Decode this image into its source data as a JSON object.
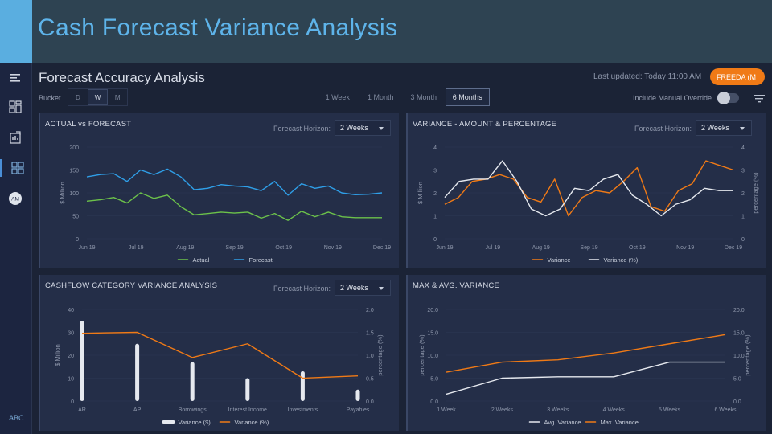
{
  "slide": {
    "title": "Cash Forecast Variance Analysis"
  },
  "app": {
    "title": "Forecast Accuracy Analysis",
    "last_updated": "Last updated: Today 11:00 AM",
    "user_label": "FREEDA (M",
    "footer_label": "ABC"
  },
  "sidebar": {
    "icons": [
      "menu-icon",
      "dashboard-icon",
      "report-icon",
      "analysis-icon",
      "avatar"
    ],
    "avatar_text": "AM"
  },
  "controls": {
    "bucket_label": "Bucket",
    "bucket_options": [
      "D",
      "W",
      "M"
    ],
    "bucket_selected": "W",
    "periods": [
      "1 Week",
      "1 Month",
      "3 Month",
      "6 Months"
    ],
    "period_selected": "6 Months",
    "manual_override_label": "Include Manual Override",
    "manual_override_on": false
  },
  "colors": {
    "orange": "#f07a16",
    "blue": "#2f9fe8",
    "green": "#6cc24a",
    "white_line": "#e6e9ef",
    "accent": "#5eb4ea"
  },
  "chart_data": [
    {
      "type": "line",
      "title": "ACTUAL vs FORECAST",
      "horizon_label": "Forecast Horizon:",
      "horizon_value": "2 Weeks",
      "ylabel": "$ Million",
      "ylim": [
        0,
        200
      ],
      "yticks": [
        "0",
        "50",
        "100",
        "150",
        "200"
      ],
      "x_tick_labels": [
        "Jun 19",
        "Jul 19",
        "Aug 19",
        "Sep 19",
        "Oct 19",
        "Nov 19",
        "Dec 19"
      ],
      "series": [
        {
          "name": "Actual",
          "color": "#6cc24a",
          "values": [
            82,
            85,
            90,
            78,
            100,
            88,
            95,
            70,
            52,
            55,
            58,
            56,
            58,
            45,
            55,
            40,
            60,
            48,
            58,
            48,
            46,
            46,
            46
          ]
        },
        {
          "name": "Forecast",
          "color": "#2f9fe8",
          "values": [
            135,
            140,
            142,
            125,
            150,
            140,
            152,
            135,
            107,
            110,
            118,
            115,
            113,
            105,
            125,
            95,
            120,
            110,
            115,
            100,
            96,
            97,
            100
          ]
        }
      ],
      "legend_position": "bottom"
    },
    {
      "type": "line",
      "title": "VARIANCE - AMOUNT & PERCENTAGE",
      "horizon_label": "Forecast Horizon:",
      "horizon_value": "2 Weeks",
      "ylabel": "$ M llion",
      "ylabel_right": "percentage (%)",
      "ylim": [
        0,
        4
      ],
      "yticks": [
        "0",
        "1",
        "2",
        "3",
        "4"
      ],
      "ylim_right": [
        0,
        4
      ],
      "yticks_right": [
        "0",
        "1",
        "2",
        "3",
        "4"
      ],
      "x_tick_labels": [
        "Jun 19",
        "Jul 19",
        "Aug 19",
        "Sep 19",
        "Oct 19",
        "Nov 19",
        "Dec 19"
      ],
      "series": [
        {
          "name": "Variance",
          "color": "#f07a16",
          "values": [
            1.5,
            1.8,
            2.5,
            2.6,
            2.8,
            2.6,
            1.8,
            1.6,
            2.6,
            1.0,
            1.8,
            2.1,
            2.0,
            2.5,
            3.1,
            1.4,
            1.2,
            2.1,
            2.4,
            3.4,
            3.2,
            3.0
          ]
        },
        {
          "name": "Variance (%)",
          "color": "#e6e9ef",
          "values": [
            1.8,
            2.5,
            2.6,
            2.6,
            3.4,
            2.5,
            1.3,
            1.0,
            1.3,
            2.2,
            2.1,
            2.6,
            2.8,
            1.9,
            1.5,
            1.0,
            1.5,
            1.7,
            2.2,
            2.1,
            2.1
          ]
        }
      ],
      "legend_position": "bottom"
    },
    {
      "type": "bar",
      "title": "CASHFLOW CATEGORY VARIANCE ANALYSIS",
      "horizon_label": "Forecast Horizon:",
      "horizon_value": "2 Weeks",
      "ylabel": "$ Million",
      "ylabel_right": "percentage (%)",
      "ylim": [
        0,
        40
      ],
      "yticks": [
        "0",
        "10",
        "20",
        "30",
        "40"
      ],
      "ylim_right": [
        0,
        2.0
      ],
      "yticks_right": [
        "0.0",
        "0.5",
        "1.0",
        "1.5",
        "2.0"
      ],
      "categories": [
        "AR",
        "AP",
        "Borrowings",
        "Interest Income",
        "Investments",
        "Payables"
      ],
      "series": [
        {
          "name": "Variance ($)",
          "color": "#e6e9ef",
          "values": [
            35,
            25,
            17,
            10,
            13,
            5
          ]
        },
        {
          "name": "Variance (%)",
          "color": "#f07a16",
          "type": "line",
          "values": [
            1.48,
            1.5,
            0.95,
            1.25,
            0.5,
            0.55
          ]
        }
      ],
      "legend_position": "bottom"
    },
    {
      "type": "line",
      "title": "MAX & AVG. VARIANCE",
      "ylabel": "percentage (%)",
      "ylabel_right": "percentage (%)",
      "ylim": [
        0,
        20
      ],
      "yticks": [
        "0.0",
        "5.0",
        "10.0",
        "15.0",
        "20.0"
      ],
      "yticks_right": [
        "0.0",
        "5.0",
        "10.0",
        "15.0",
        "20.0"
      ],
      "categories": [
        "1 Week",
        "2 Weeks",
        "3 Weeks",
        "4 Weeks",
        "5 Weeks",
        "6 Weeks"
      ],
      "series": [
        {
          "name": "Avg. Variance",
          "color": "#e6e9ef",
          "values": [
            1.5,
            5.0,
            5.3,
            5.3,
            8.5,
            8.5
          ]
        },
        {
          "name": "Max. Variance",
          "color": "#f07a16",
          "values": [
            6.3,
            8.5,
            9.0,
            10.5,
            12.5,
            14.5
          ]
        }
      ],
      "legend_position": "bottom"
    }
  ]
}
